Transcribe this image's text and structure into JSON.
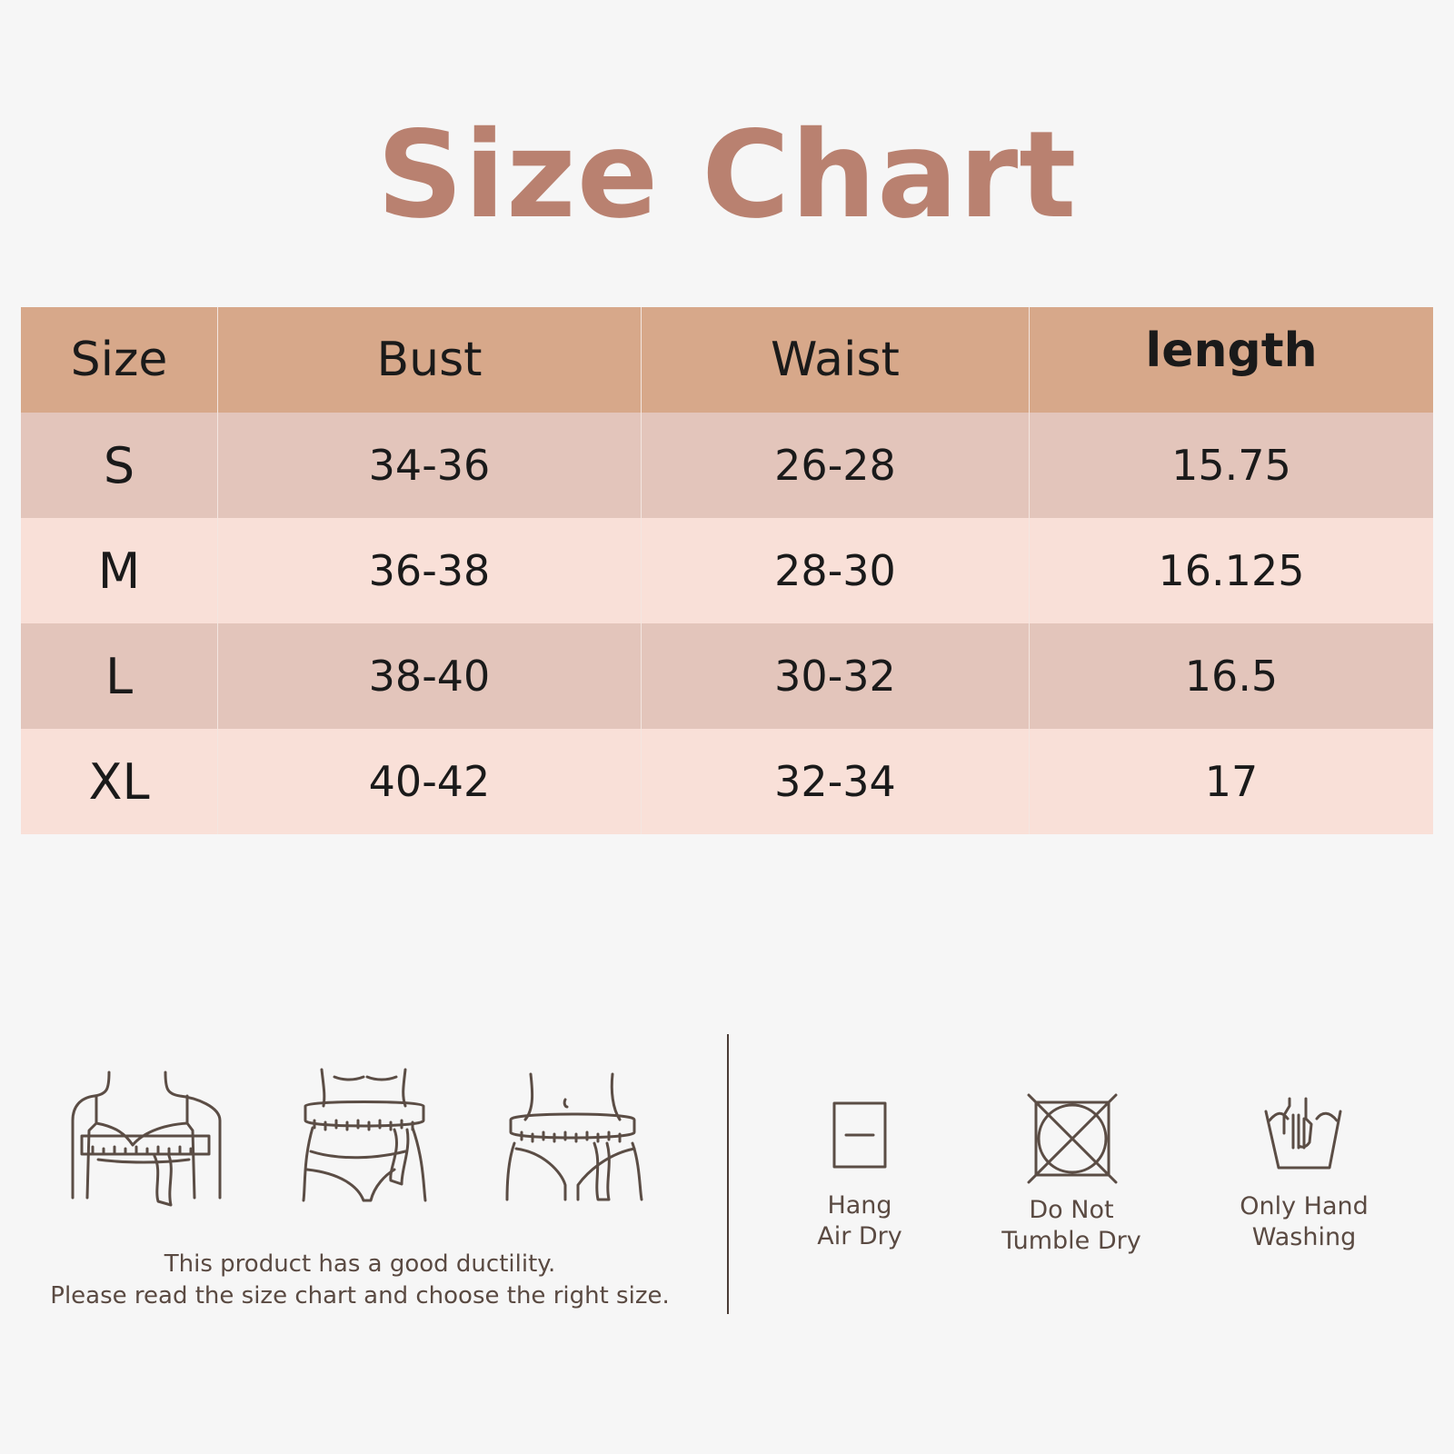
{
  "title": "Size Chart",
  "table": {
    "headers": [
      "Size",
      "Bust",
      "Waist",
      "length"
    ],
    "rows": [
      [
        "S",
        "34-36",
        "26-28",
        "15.75"
      ],
      [
        "M",
        "36-38",
        "28-30",
        "16.125"
      ],
      [
        "L",
        "38-40",
        "30-32",
        "16.5"
      ],
      [
        "XL",
        "40-42",
        "32-34",
        "17"
      ]
    ]
  },
  "measure_icons": [
    "bust-measure-icon",
    "waist-measure-icon",
    "hip-measure-icon"
  ],
  "note": {
    "line1": "This product has a good ductility.",
    "line2": "Please read the size chart and choose the right size."
  },
  "care": [
    {
      "icon": "hang-dry-icon",
      "line1": "Hang",
      "line2": "Air Dry"
    },
    {
      "icon": "no-tumble-dry-icon",
      "line1": "Do Not",
      "line2": "Tumble Dry"
    },
    {
      "icon": "hand-wash-icon",
      "line1": "Only Hand",
      "line2": "Washing"
    }
  ],
  "colors": {
    "title": "#b98170",
    "header": "#d7a88a",
    "row_dark": "#e3c5bb",
    "row_light": "#f9e0d8",
    "background": "#f6f6f6"
  }
}
